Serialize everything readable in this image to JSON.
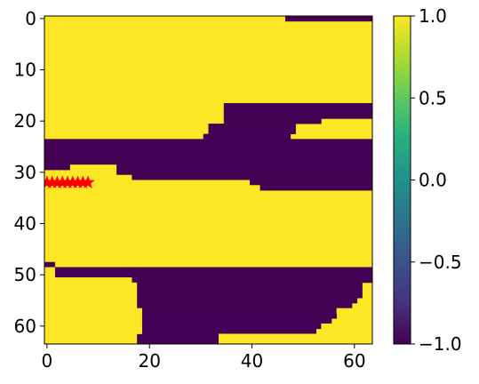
{
  "chart_data": {
    "type": "heatmap",
    "title": "",
    "xlabel": "",
    "ylabel": "",
    "grid": false,
    "legend": "none",
    "nrows": 64,
    "ncols": 64,
    "xlim": [
      -0.5,
      63.5
    ],
    "ylim": [
      63.5,
      -0.5
    ],
    "x_ticks": [
      0,
      20,
      40,
      60
    ],
    "y_ticks": [
      0,
      10,
      20,
      30,
      40,
      50,
      60
    ],
    "colormap": "viridis",
    "color_range": [
      -1.0,
      1.0
    ],
    "colorbar_ticks": [
      "1.0",
      "0.5",
      "0.0",
      "−0.5",
      "−1.0"
    ],
    "colors": {
      "high": "#fde725",
      "low": "#440154",
      "marker": "#ff0000"
    },
    "bands_value_minus1": [
      {
        "row": 0,
        "x0": 47,
        "x1": 63
      },
      {
        "row": 17,
        "x0": 35,
        "x1": 63
      },
      {
        "row": 18,
        "x0": 35,
        "x1": 63
      },
      {
        "row": 19,
        "x0": 35,
        "x1": 63
      },
      {
        "row": 20,
        "x0": 35,
        "x1": 53
      },
      {
        "row": 21,
        "x0": 32,
        "x1": 48
      },
      {
        "row": 22,
        "x0": 32,
        "x1": 48
      },
      {
        "row": 23,
        "x0": 31,
        "x1": 47
      },
      {
        "row": 24,
        "x0": 0,
        "x1": 63
      },
      {
        "row": 25,
        "x0": 0,
        "x1": 63
      },
      {
        "row": 26,
        "x0": 0,
        "x1": 63
      },
      {
        "row": 27,
        "x0": 0,
        "x1": 63
      },
      {
        "row": 28,
        "x0": 0,
        "x1": 63
      },
      {
        "row": 29,
        "x0": 0,
        "x1": 63
      },
      {
        "row": 30,
        "x0": 14,
        "x1": 63
      },
      {
        "row": 31,
        "x0": 17,
        "x1": 63
      },
      {
        "row": 32,
        "x0": 40,
        "x1": 63
      },
      {
        "row": 33,
        "x0": 42,
        "x1": 63
      },
      {
        "row": 48,
        "x0": 0,
        "x1": 1
      },
      {
        "row": 49,
        "x0": 2,
        "x1": 63
      },
      {
        "row": 50,
        "x0": 2,
        "x1": 63
      },
      {
        "row": 51,
        "x0": 17,
        "x1": 63
      },
      {
        "row": 52,
        "x0": 18,
        "x1": 61
      },
      {
        "row": 53,
        "x0": 18,
        "x1": 61
      },
      {
        "row": 54,
        "x0": 18,
        "x1": 61
      },
      {
        "row": 55,
        "x0": 18,
        "x1": 60
      },
      {
        "row": 56,
        "x0": 18,
        "x1": 59
      },
      {
        "row": 57,
        "x0": 19,
        "x1": 56
      },
      {
        "row": 58,
        "x0": 19,
        "x1": 56
      },
      {
        "row": 59,
        "x0": 19,
        "x1": 55
      },
      {
        "row": 60,
        "x0": 19,
        "x1": 53
      },
      {
        "row": 61,
        "x0": 19,
        "x1": 52
      },
      {
        "row": 62,
        "x0": 18,
        "x1": 33
      },
      {
        "row": 63,
        "x0": 18,
        "x1": 33
      }
    ],
    "bands_value_plus1": [
      {
        "row": 29,
        "x0": 5,
        "x1": 13
      },
      {
        "row": 30,
        "x0": 5,
        "x1": 13
      },
      {
        "row": 31,
        "x0": 5,
        "x1": 16
      },
      {
        "row": 32,
        "x0": 5,
        "x1": 39
      },
      {
        "row": 33,
        "x0": 5,
        "x1": 41
      },
      {
        "row": 34,
        "x0": 5,
        "x1": 41
      },
      {
        "row": 35,
        "x0": 5,
        "x1": 41
      },
      {
        "row": 49,
        "x0": 0,
        "x1": 1
      },
      {
        "row": 50,
        "x0": 0,
        "x1": 1
      },
      {
        "row": 51,
        "x0": 0,
        "x1": 16
      },
      {
        "row": 52,
        "x0": 0,
        "x1": 17
      },
      {
        "row": 53,
        "x0": 0,
        "x1": 17
      },
      {
        "row": 54,
        "x0": 0,
        "x1": 17
      },
      {
        "row": 55,
        "x0": 0,
        "x1": 17
      },
      {
        "row": 56,
        "x0": 0,
        "x1": 17
      },
      {
        "row": 57,
        "x0": 0,
        "x1": 18
      },
      {
        "row": 58,
        "x0": 0,
        "x1": 18
      },
      {
        "row": 59,
        "x0": 0,
        "x1": 18
      },
      {
        "row": 60,
        "x0": 0,
        "x1": 18
      },
      {
        "row": 61,
        "x0": 0,
        "x1": 18
      },
      {
        "row": 62,
        "x0": 0,
        "x1": 17
      },
      {
        "row": 63,
        "x0": 0,
        "x1": 17
      },
      {
        "row": 62,
        "x0": 34,
        "x1": 63
      },
      {
        "row": 63,
        "x0": 34,
        "x1": 63
      },
      {
        "row": 57,
        "x0": 57,
        "x1": 63
      },
      {
        "row": 60,
        "x0": 54,
        "x1": 63
      }
    ],
    "markers": {
      "shape": "star",
      "color": "#ff0000",
      "points": [
        [
          0,
          32
        ],
        [
          1,
          32
        ],
        [
          2,
          32
        ],
        [
          3,
          32
        ],
        [
          4,
          32
        ],
        [
          5,
          32
        ],
        [
          6,
          32
        ],
        [
          7,
          32
        ],
        [
          8,
          32
        ]
      ]
    }
  }
}
